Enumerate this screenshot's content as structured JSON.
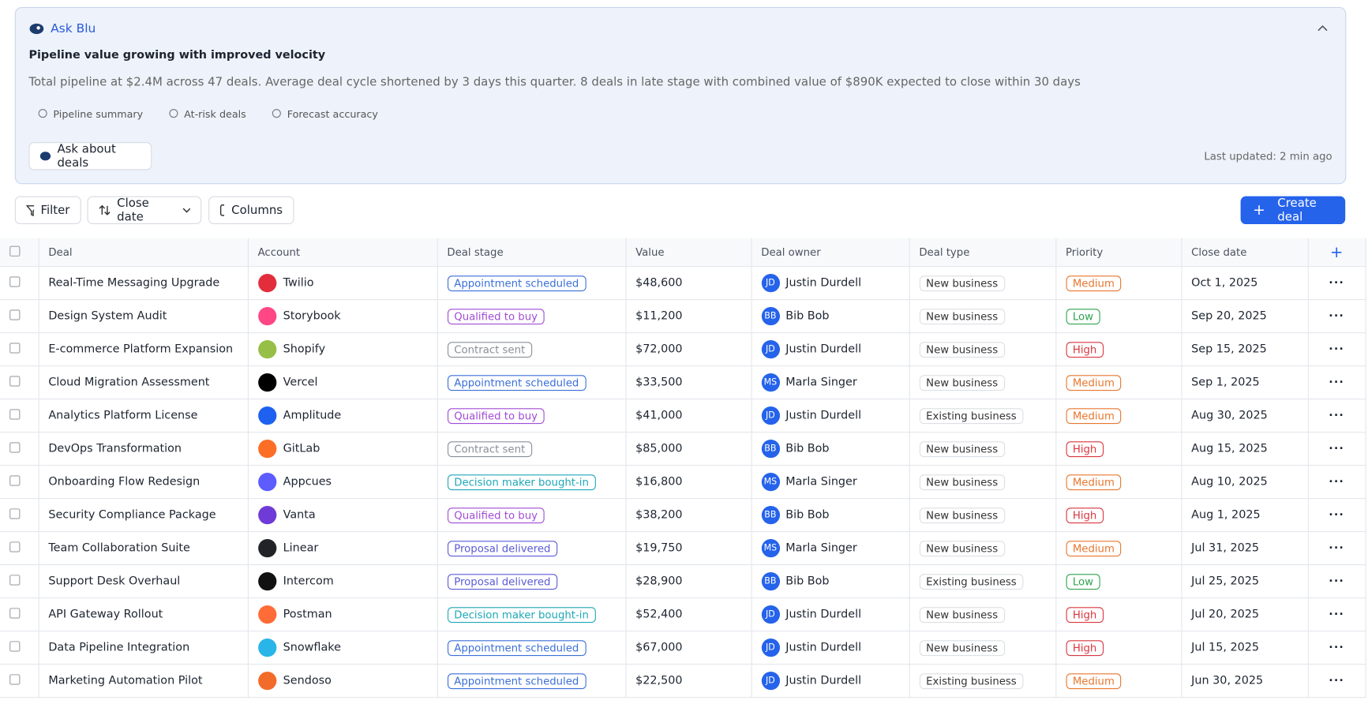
{
  "ask_blu": {
    "title": "Ask Blu",
    "headline": "Pipeline value growing with improved velocity",
    "summary": "Total pipeline at $2.4M across 47 deals. Average deal cycle shortened by 3 days this quarter. 8 deals in late stage with combined value of $890K expected to close within 30 days",
    "chips": [
      "Pipeline summary",
      "At-risk deals",
      "Forecast accuracy"
    ],
    "ask_button": "Ask about deals",
    "last_updated": "Last updated: 2 min ago"
  },
  "toolbar": {
    "filter": "Filter",
    "sort": "Close date",
    "columns": "Columns",
    "create": "Create deal"
  },
  "table": {
    "headers": [
      "Deal",
      "Account",
      "Deal stage",
      "Value",
      "Deal owner",
      "Deal type",
      "Priority",
      "Close date"
    ],
    "rows": [
      {
        "deal": "Real-Time Messaging Upgrade",
        "account": "Twilio",
        "logo_color": "#e22d3c",
        "stage": "Appointment scheduled",
        "stage_color": "#3b6fd8",
        "value": "$48,600",
        "owner_initials": "JD",
        "owner": "Justin Durdell",
        "type": "New business",
        "priority": "Medium",
        "priority_color": "#e8772e",
        "close_date": "Oct 1, 2025"
      },
      {
        "deal": "Design System Audit",
        "account": "Storybook",
        "logo_color": "#ff4785",
        "stage": "Qualified to buy",
        "stage_color": "#a24bd6",
        "value": "$11,200",
        "owner_initials": "BB",
        "owner": "Bib Bob",
        "type": "New business",
        "priority": "Low",
        "priority_color": "#2fa24f",
        "close_date": "Sep 20, 2025"
      },
      {
        "deal": "E-commerce Platform Expansion",
        "account": "Shopify",
        "logo_color": "#95bf47",
        "stage": "Contract sent",
        "stage_color": "#8a8f98",
        "value": "$72,000",
        "owner_initials": "JD",
        "owner": "Justin Durdell",
        "type": "New business",
        "priority": "High",
        "priority_color": "#d9363e",
        "close_date": "Sep 15, 2025"
      },
      {
        "deal": "Cloud Migration Assessment",
        "account": "Vercel",
        "logo_color": "#000000",
        "stage": "Appointment scheduled",
        "stage_color": "#3b6fd8",
        "value": "$33,500",
        "owner_initials": "MS",
        "owner": "Marla Singer",
        "type": "New business",
        "priority": "Medium",
        "priority_color": "#e8772e",
        "close_date": "Sep 1, 2025"
      },
      {
        "deal": "Analytics Platform License",
        "account": "Amplitude",
        "logo_color": "#1e61f0",
        "stage": "Qualified to buy",
        "stage_color": "#a24bd6",
        "value": "$41,000",
        "owner_initials": "JD",
        "owner": "Justin Durdell",
        "type": "Existing business",
        "priority": "Medium",
        "priority_color": "#e8772e",
        "close_date": "Aug 30, 2025"
      },
      {
        "deal": "DevOps Transformation",
        "account": "GitLab",
        "logo_color": "#fc6d26",
        "stage": "Contract sent",
        "stage_color": "#8a8f98",
        "value": "$85,000",
        "owner_initials": "BB",
        "owner": "Bib Bob",
        "type": "New business",
        "priority": "High",
        "priority_color": "#d9363e",
        "close_date": "Aug 15, 2025"
      },
      {
        "deal": "Onboarding Flow Redesign",
        "account": "Appcues",
        "logo_color": "#5c5cff",
        "stage": "Decision maker bought-in",
        "stage_color": "#1ea7b8",
        "value": "$16,800",
        "owner_initials": "MS",
        "owner": "Marla Singer",
        "type": "New business",
        "priority": "Medium",
        "priority_color": "#e8772e",
        "close_date": "Aug 10, 2025"
      },
      {
        "deal": "Security Compliance Package",
        "account": "Vanta",
        "logo_color": "#6e3bd8",
        "stage": "Qualified to buy",
        "stage_color": "#a24bd6",
        "value": "$38,200",
        "owner_initials": "BB",
        "owner": "Bib Bob",
        "type": "New business",
        "priority": "High",
        "priority_color": "#d9363e",
        "close_date": "Aug 1, 2025"
      },
      {
        "deal": "Team Collaboration Suite",
        "account": "Linear",
        "logo_color": "#222326",
        "stage": "Proposal delivered",
        "stage_color": "#5b5bd6",
        "value": "$19,750",
        "owner_initials": "MS",
        "owner": "Marla Singer",
        "type": "New business",
        "priority": "Medium",
        "priority_color": "#e8772e",
        "close_date": "Jul 31, 2025"
      },
      {
        "deal": "Support Desk Overhaul",
        "account": "Intercom",
        "logo_color": "#111111",
        "stage": "Proposal delivered",
        "stage_color": "#5b5bd6",
        "value": "$28,900",
        "owner_initials": "BB",
        "owner": "Bib Bob",
        "type": "Existing business",
        "priority": "Low",
        "priority_color": "#2fa24f",
        "close_date": "Jul 25, 2025"
      },
      {
        "deal": "API Gateway Rollout",
        "account": "Postman",
        "logo_color": "#ff6c37",
        "stage": "Decision maker bought-in",
        "stage_color": "#1ea7b8",
        "value": "$52,400",
        "owner_initials": "JD",
        "owner": "Justin Durdell",
        "type": "New business",
        "priority": "High",
        "priority_color": "#d9363e",
        "close_date": "Jul 20, 2025"
      },
      {
        "deal": "Data Pipeline Integration",
        "account": "Snowflake",
        "logo_color": "#29b5e8",
        "stage": "Appointment scheduled",
        "stage_color": "#3b6fd8",
        "value": "$67,000",
        "owner_initials": "JD",
        "owner": "Justin Durdell",
        "type": "New business",
        "priority": "High",
        "priority_color": "#d9363e",
        "close_date": "Jul 15, 2025"
      },
      {
        "deal": "Marketing Automation Pilot",
        "account": "Sendoso",
        "logo_color": "#f26b2a",
        "stage": "Appointment scheduled",
        "stage_color": "#3b6fd8",
        "value": "$22,500",
        "owner_initials": "JD",
        "owner": "Justin Durdell",
        "type": "Existing business",
        "priority": "Medium",
        "priority_color": "#e8772e",
        "close_date": "Jun 30, 2025"
      }
    ]
  }
}
